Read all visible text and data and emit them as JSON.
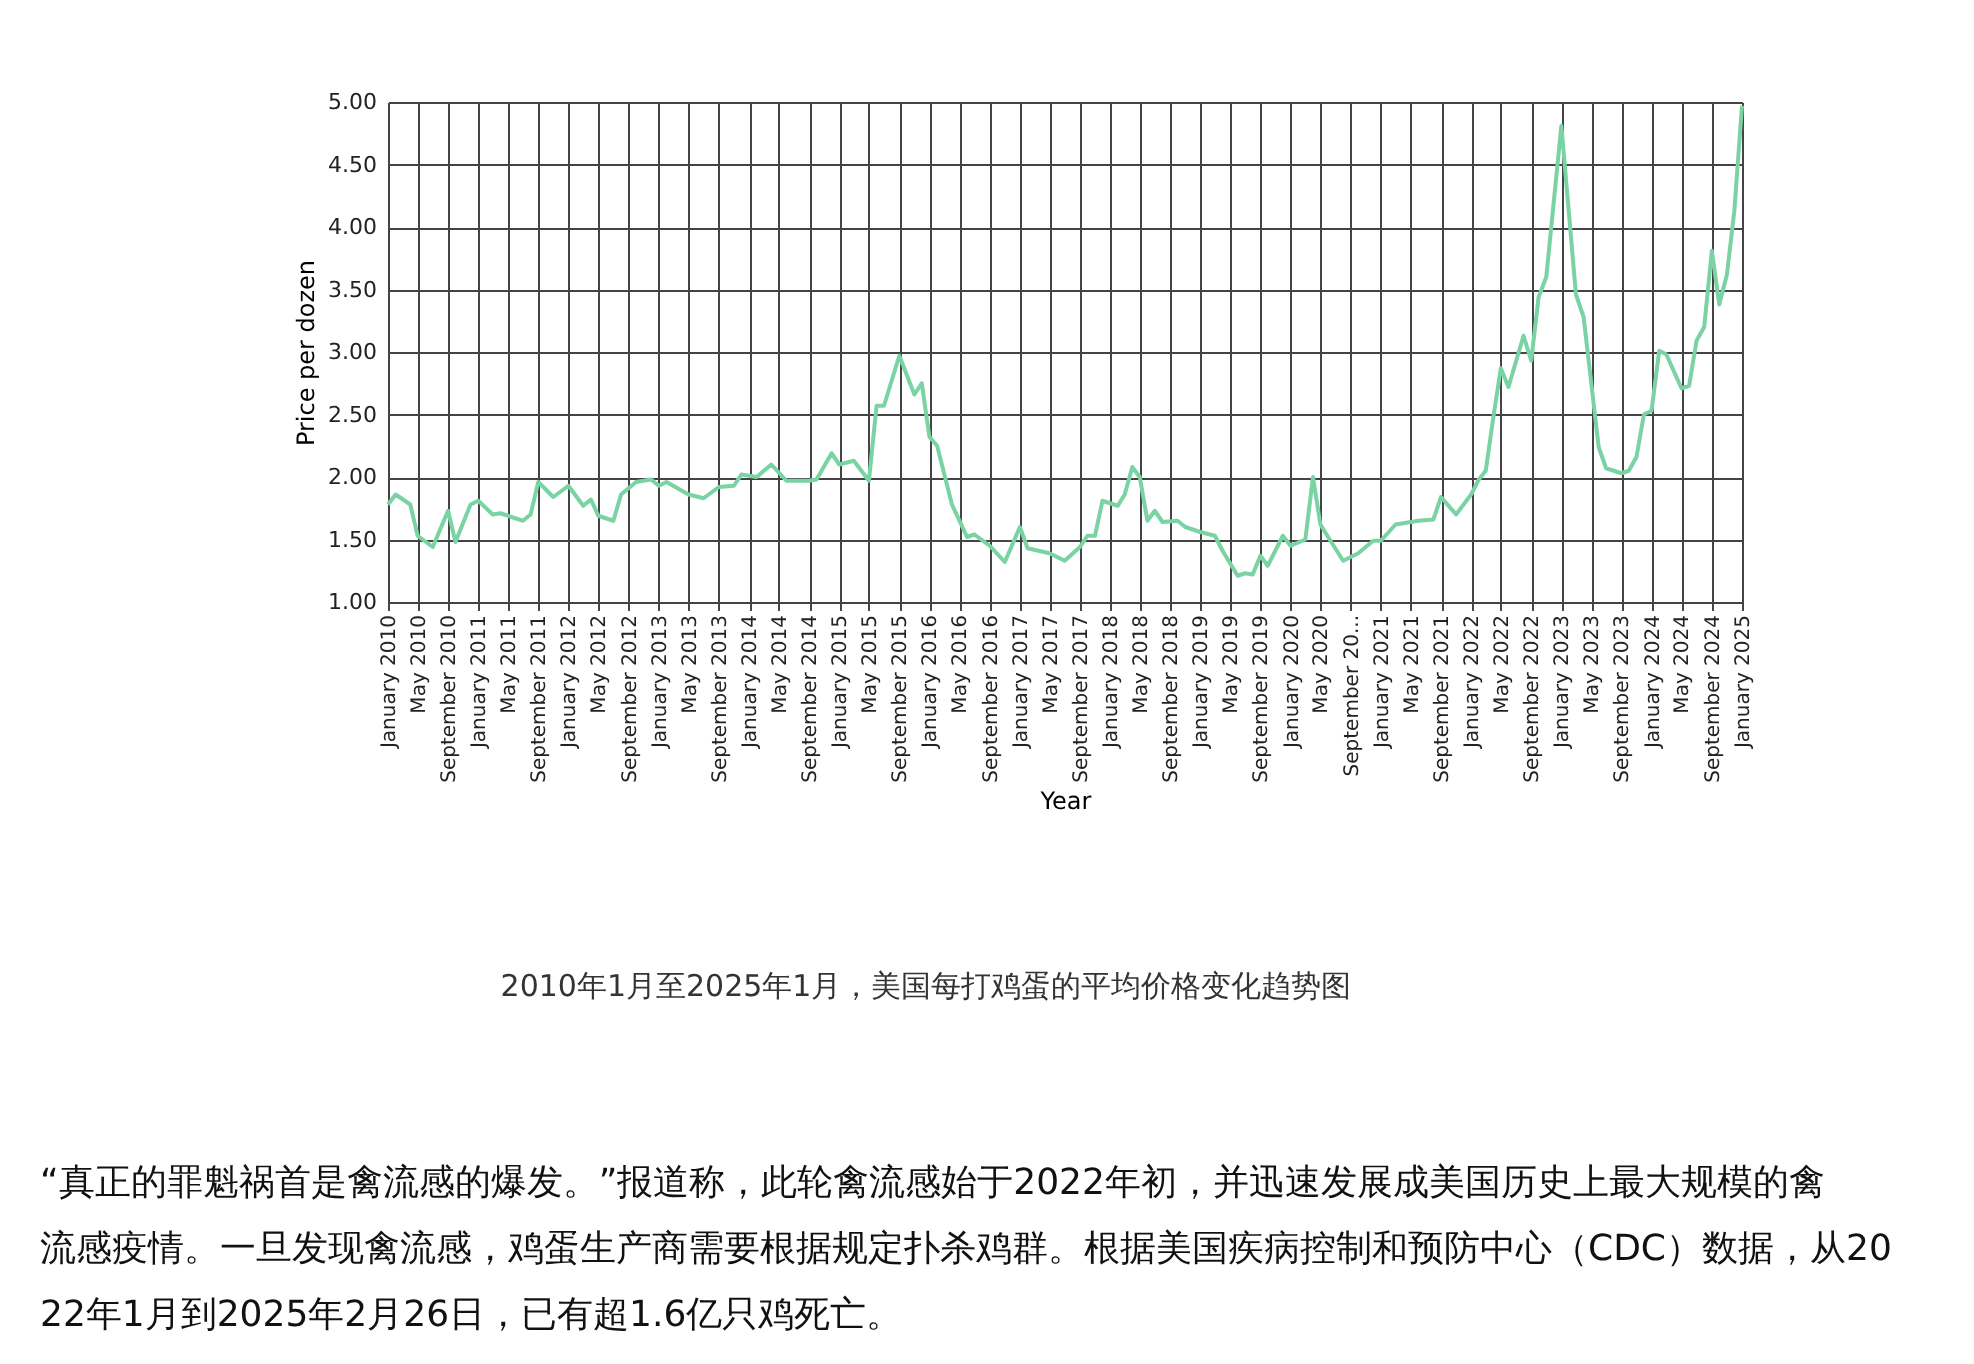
{
  "chart_data": {
    "type": "line",
    "xlabel": "Year",
    "ylabel": "Price per dozen",
    "grid": true,
    "marker": "none",
    "line_style": "solid",
    "series": [
      {
        "color": "#79d3a3",
        "x": [
          "2010-01",
          "2010-02",
          "2010-04",
          "2010-05",
          "2010-07",
          "2010-09",
          "2010-10",
          "2010-12",
          "2011-01",
          "2011-03",
          "2011-04",
          "2011-07",
          "2011-08",
          "2011-09",
          "2011-11",
          "2012-01",
          "2012-03",
          "2012-04",
          "2012-05",
          "2012-07",
          "2012-08",
          "2012-10",
          "2012-12",
          "2013-01",
          "2013-02",
          "2013-05",
          "2013-07",
          "2013-09",
          "2013-11",
          "2013-12",
          "2014-02",
          "2014-04",
          "2014-06",
          "2014-09",
          "2014-10",
          "2014-12",
          "2015-01",
          "2015-03",
          "2015-05",
          "2015-06",
          "2015-07",
          "2015-09",
          "2015-11",
          "2015-12",
          "2016-01",
          "2016-02",
          "2016-04",
          "2016-06",
          "2016-07",
          "2016-09",
          "2016-11",
          "2017-01",
          "2017-02",
          "2017-05",
          "2017-07",
          "2017-09",
          "2017-10",
          "2017-11",
          "2017-12",
          "2018-02",
          "2018-03",
          "2018-04",
          "2018-05",
          "2018-06",
          "2018-07",
          "2018-08",
          "2018-10",
          "2018-11",
          "2019-01",
          "2019-03",
          "2019-04",
          "2019-06",
          "2019-07",
          "2019-08",
          "2019-09",
          "2019-10",
          "2019-12",
          "2020-01",
          "2020-03",
          "2020-04",
          "2020-05",
          "2020-06",
          "2020-08",
          "2020-10",
          "2020-12",
          "2021-01",
          "2021-03",
          "2021-06",
          "2021-08",
          "2021-09",
          "2021-11",
          "2022-01",
          "2022-02",
          "2022-03",
          "2022-04",
          "2022-05",
          "2022-06",
          "2022-08",
          "2022-09",
          "2022-10",
          "2022-11",
          "2023-01",
          "2023-03",
          "2023-04",
          "2023-06",
          "2023-07",
          "2023-09",
          "2023-10",
          "2023-11",
          "2023-12",
          "2024-01",
          "2024-02",
          "2024-03",
          "2024-05",
          "2024-06",
          "2024-07",
          "2024-08",
          "2024-09",
          "2024-10",
          "2024-11",
          "2024-12",
          "2025-01"
        ],
        "values": [
          1.78,
          1.86,
          1.78,
          1.53,
          1.44,
          1.73,
          1.48,
          1.78,
          1.81,
          1.7,
          1.71,
          1.65,
          1.7,
          1.96,
          1.84,
          1.93,
          1.77,
          1.82,
          1.69,
          1.65,
          1.86,
          1.96,
          1.98,
          1.93,
          1.96,
          1.86,
          1.83,
          1.92,
          1.93,
          2.02,
          2.0,
          2.1,
          1.97,
          1.97,
          1.98,
          2.19,
          2.1,
          2.13,
          1.97,
          2.57,
          2.57,
          2.97,
          2.66,
          2.75,
          2.32,
          2.25,
          1.78,
          1.52,
          1.54,
          1.45,
          1.32,
          1.6,
          1.43,
          1.39,
          1.33,
          1.44,
          1.53,
          1.53,
          1.81,
          1.77,
          1.86,
          2.08,
          2.0,
          1.65,
          1.73,
          1.64,
          1.65,
          1.6,
          1.56,
          1.53,
          1.41,
          1.21,
          1.23,
          1.22,
          1.37,
          1.29,
          1.53,
          1.45,
          1.5,
          2.0,
          1.62,
          1.52,
          1.33,
          1.39,
          1.49,
          1.49,
          1.62,
          1.65,
          1.66,
          1.84,
          1.7,
          1.86,
          1.98,
          2.05,
          2.48,
          2.87,
          2.72,
          3.13,
          2.93,
          3.44,
          3.6,
          4.81,
          3.46,
          3.28,
          2.24,
          2.07,
          2.03,
          2.05,
          2.16,
          2.5,
          2.53,
          3.01,
          2.98,
          2.71,
          2.73,
          3.09,
          3.2,
          3.81,
          3.38,
          3.62,
          4.13,
          4.97
        ]
      }
    ],
    "ylim": [
      1,
      5
    ],
    "yticks": [
      {
        "value": 1,
        "label": "1.00"
      },
      {
        "value": 1.5,
        "label": "1.50"
      },
      {
        "value": 2,
        "label": "2.00"
      },
      {
        "value": 2.5,
        "label": "2.50"
      },
      {
        "value": 3,
        "label": "3.00"
      },
      {
        "value": 3.5,
        "label": "3.50"
      },
      {
        "value": 4,
        "label": "4.00"
      },
      {
        "value": 4.5,
        "label": "4.50"
      },
      {
        "value": 5,
        "label": "5.00"
      }
    ],
    "xlim": [
      "2010-01",
      "2025-01"
    ],
    "xticks": [
      {
        "value": "2010-01",
        "label": "January 2010"
      },
      {
        "value": "2010-05",
        "label": "May 2010"
      },
      {
        "value": "2010-09",
        "label": "September 2010"
      },
      {
        "value": "2011-01",
        "label": "January 2011"
      },
      {
        "value": "2011-05",
        "label": "May 2011"
      },
      {
        "value": "2011-09",
        "label": "September 2011"
      },
      {
        "value": "2012-01",
        "label": "January 2012"
      },
      {
        "value": "2012-05",
        "label": "May 2012"
      },
      {
        "value": "2012-09",
        "label": "September 2012"
      },
      {
        "value": "2013-01",
        "label": "January 2013"
      },
      {
        "value": "2013-05",
        "label": "May 2013"
      },
      {
        "value": "2013-09",
        "label": "September 2013"
      },
      {
        "value": "2014-01",
        "label": "January 2014"
      },
      {
        "value": "2014-05",
        "label": "May 2014"
      },
      {
        "value": "2014-09",
        "label": "September 2014"
      },
      {
        "value": "2015-01",
        "label": "January 2015"
      },
      {
        "value": "2015-05",
        "label": "May 2015"
      },
      {
        "value": "2015-09",
        "label": "September 2015"
      },
      {
        "value": "2016-01",
        "label": "January 2016"
      },
      {
        "value": "2016-05",
        "label": "May 2016"
      },
      {
        "value": "2016-09",
        "label": "September 2016"
      },
      {
        "value": "2017-01",
        "label": "January 2017"
      },
      {
        "value": "2017-05",
        "label": "May 2017"
      },
      {
        "value": "2017-09",
        "label": "September 2017"
      },
      {
        "value": "2018-01",
        "label": "January 2018"
      },
      {
        "value": "2018-05",
        "label": "May 2018"
      },
      {
        "value": "2018-09",
        "label": "September 2018"
      },
      {
        "value": "2019-01",
        "label": "January 2019"
      },
      {
        "value": "2019-05",
        "label": "May 2019"
      },
      {
        "value": "2019-09",
        "label": "September 2019"
      },
      {
        "value": "2020-01",
        "label": "January 2020"
      },
      {
        "value": "2020-05",
        "label": "May 2020"
      },
      {
        "value": "2020-09",
        "label": "September 20..."
      },
      {
        "value": "2021-01",
        "label": "January 2021"
      },
      {
        "value": "2021-05",
        "label": "May 2021"
      },
      {
        "value": "2021-09",
        "label": "September 2021"
      },
      {
        "value": "2022-01",
        "label": "January 2022"
      },
      {
        "value": "2022-05",
        "label": "May 2022"
      },
      {
        "value": "2022-09",
        "label": "September 2022"
      },
      {
        "value": "2023-01",
        "label": "January 2023"
      },
      {
        "value": "2023-05",
        "label": "May 2023"
      },
      {
        "value": "2023-09",
        "label": "September 2023"
      },
      {
        "value": "2024-01",
        "label": "January 2024"
      },
      {
        "value": "2024-05",
        "label": "May 2024"
      },
      {
        "value": "2024-09",
        "label": "September 2024"
      },
      {
        "value": "2025-01",
        "label": "January 2025"
      }
    ],
    "annotations": [
      "2010年1月至2025年1月，美国每打鸡蛋的平均价格变化趋势图",
      "“真正的罪魁祸首是禽流感的爆发。”报道称，此轮禽流感始于2022年初，并迅速发展成美国历史上最大规模的禽流感疫情。一旦发现禽流感，鸡蛋生产商需要根据规定扑杀鸡群。根据美国疾病控制和预防中心（CDC）数据，从2022年1月到2025年2月26日，已有超1.6亿只鸡死亡。"
    ]
  }
}
